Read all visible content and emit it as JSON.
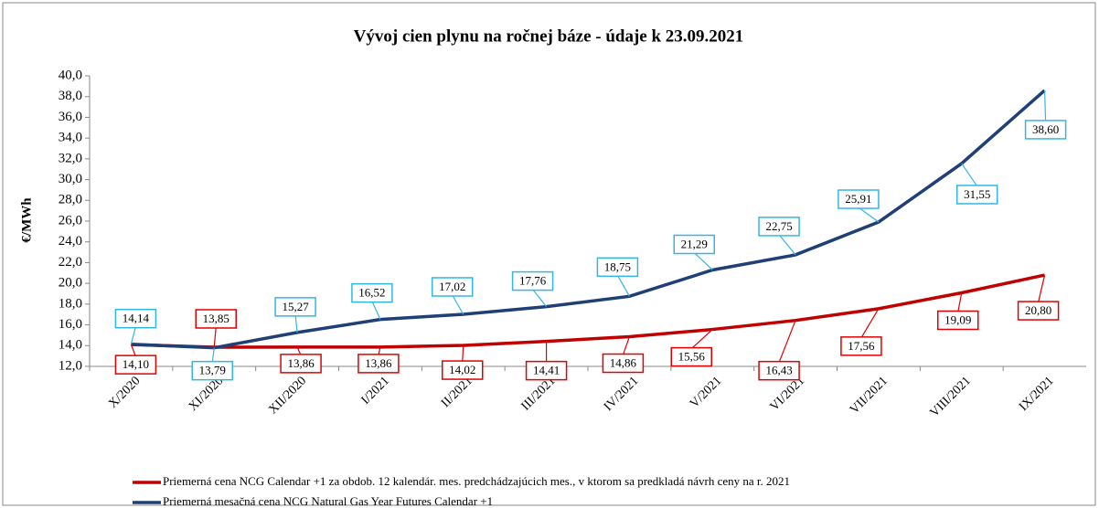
{
  "chart_data": {
    "type": "line",
    "title": "Vývoj cien plynu na ročnej báze - údaje k 23.09.2021",
    "y_label": "€/MWh",
    "categories": [
      "X/2020",
      "XI/2020",
      "XII/2020",
      "I/2021",
      "II/2021",
      "III/2021",
      "IV/2021",
      "V/2021",
      "VI/2021",
      "VII/2021",
      "VIII/2021",
      "IX/2021"
    ],
    "series": [
      {
        "name": "Priemerná cena NCG Calendar +1 za obdob. 12 kalendár. mes. predchádzajúcich mes., v ktorom sa predkladá návrh ceny na r. 2021",
        "color": "#c00000",
        "values": [
          14.1,
          13.85,
          13.86,
          13.86,
          14.02,
          14.41,
          14.86,
          15.56,
          16.43,
          17.56,
          19.09,
          20.8
        ],
        "value_labels": [
          "14,10",
          "13,85",
          "13,86",
          "13,86",
          "14,02",
          "14,41",
          "14,86",
          "15,56",
          "16,43",
          "17,56",
          "19,09",
          "20,80"
        ]
      },
      {
        "name": "Priemerná mesačná cena NCG Natural Gas Year Futures Calendar +1",
        "color": "#1f3f77",
        "values": [
          14.14,
          13.79,
          15.27,
          16.52,
          17.02,
          17.76,
          18.75,
          21.29,
          22.75,
          25.91,
          31.55,
          38.6
        ],
        "value_labels": [
          "14,14",
          "13,79",
          "15,27",
          "16,52",
          "17,02",
          "17,76",
          "18,75",
          "21,29",
          "22,75",
          "25,91",
          "31,55",
          "38,60"
        ]
      }
    ],
    "ylim": [
      12,
      40
    ],
    "yticks": [
      {
        "value": 12,
        "label": "12,0"
      },
      {
        "value": 14,
        "label": "14,0"
      },
      {
        "value": 16,
        "label": "16,0"
      },
      {
        "value": 18,
        "label": "18,0"
      },
      {
        "value": 20,
        "label": "20,0"
      },
      {
        "value": 22,
        "label": "22,0"
      },
      {
        "value": 24,
        "label": "24,0"
      },
      {
        "value": 26,
        "label": "26,0"
      },
      {
        "value": 28,
        "label": "28,0"
      },
      {
        "value": 30,
        "label": "30,0"
      },
      {
        "value": 32,
        "label": "32,0"
      },
      {
        "value": 34,
        "label": "34,0"
      },
      {
        "value": 36,
        "label": "36,0"
      },
      {
        "value": 38,
        "label": "38,0"
      },
      {
        "value": 40,
        "label": "40,0"
      }
    ],
    "grid": false
  }
}
